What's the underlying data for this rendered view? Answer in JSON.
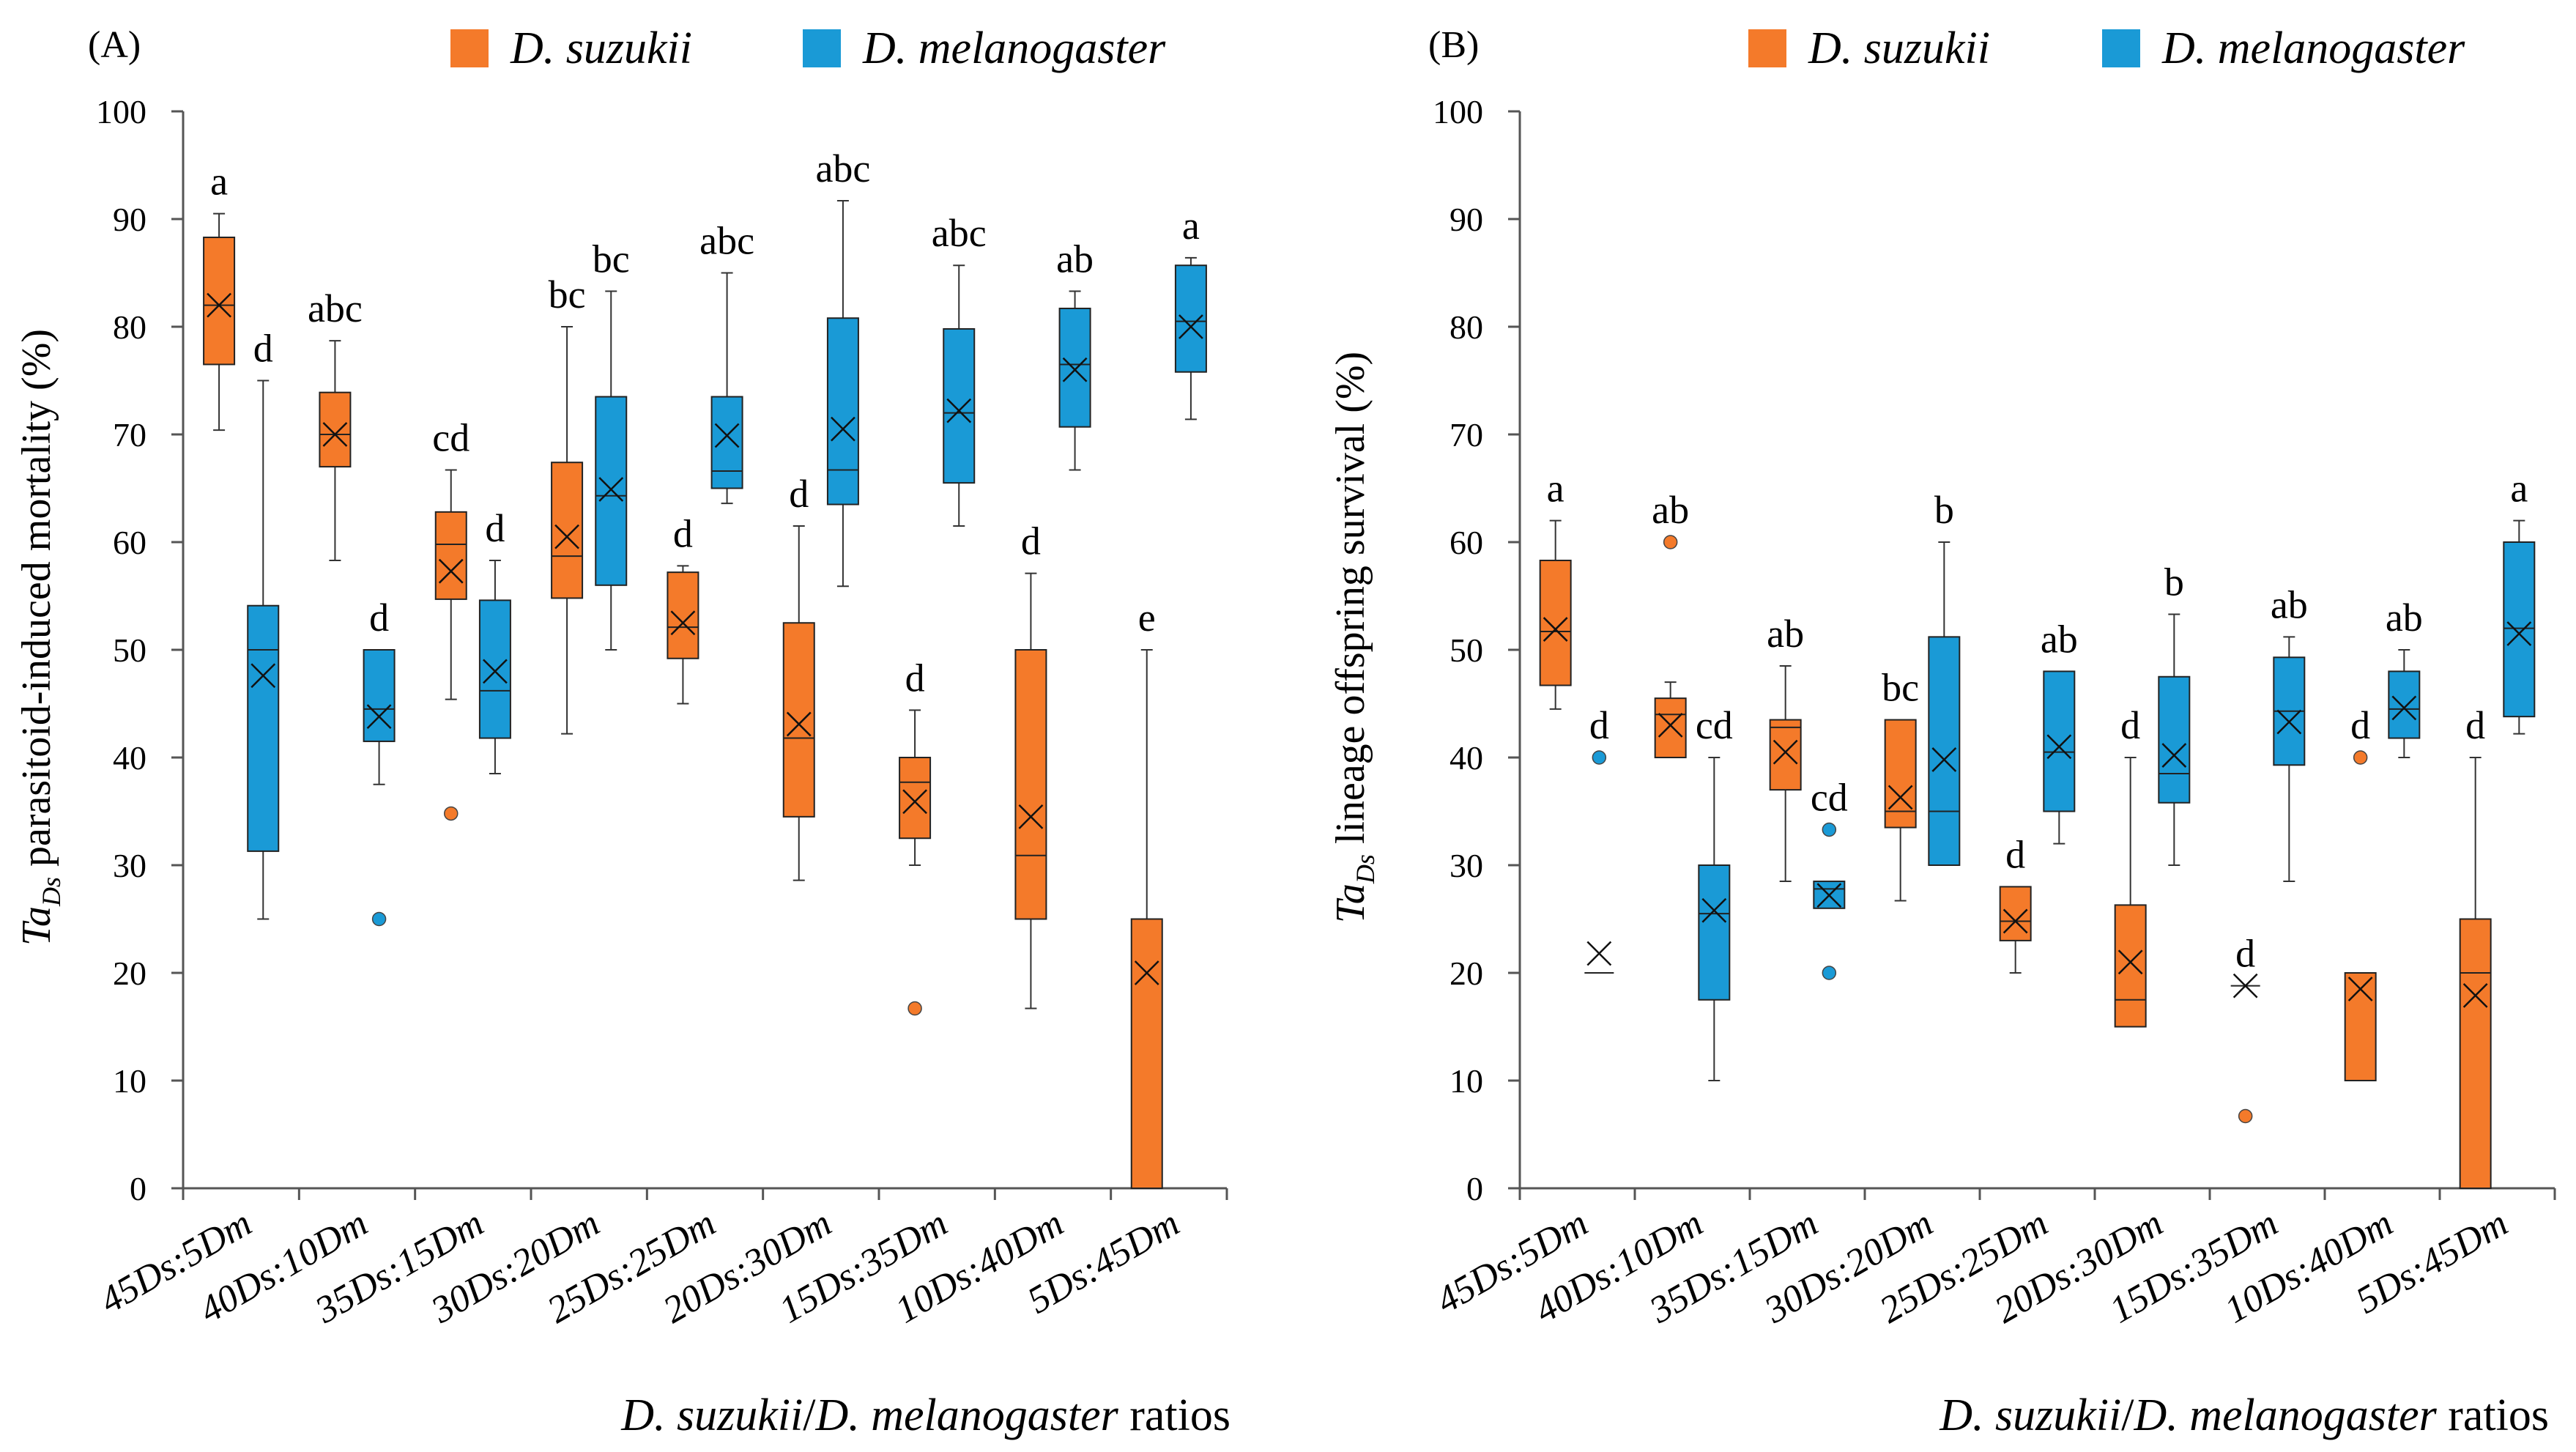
{
  "colors": {
    "ds": "#F47A2A",
    "dm": "#1A9AD6",
    "axis": "#555555",
    "whisker": "#333333"
  },
  "legend": {
    "ds": "D. suzukii",
    "dm": "D. melanogaster"
  },
  "x_axis_title": {
    "prefix": "D. suzukii",
    "sep": "/",
    "mid": "D. melanogaster",
    "suffix": " ratios"
  },
  "chart_data": [
    {
      "type": "box",
      "panel": "(A)",
      "ylabel_prefix": "Ta",
      "ylabel_subscript": "Ds",
      "ylabel_rest": " parasitoid-induced mortality (%)",
      "ylim": [
        0,
        100
      ],
      "yticks": [
        0,
        10,
        20,
        30,
        40,
        50,
        60,
        70,
        80,
        90,
        100
      ],
      "categories": [
        "45Ds:5Dm",
        "40Ds:10Dm",
        "35Ds:15Dm",
        "30Ds:20Dm",
        "25Ds:25Dm",
        "20Ds:30Dm",
        "15Ds:35Dm",
        "10Ds:40Dm",
        "5Ds:45Dm"
      ],
      "series": [
        {
          "name": "D. suzukii",
          "key": "ds",
          "boxes": [
            {
              "min": 70.4,
              "q1": 76.5,
              "median": 82.0,
              "q3": 88.3,
              "max": 90.5,
              "mean": 82.0,
              "letter": "a",
              "outliers": []
            },
            {
              "min": 58.3,
              "q1": 67.0,
              "median": 70.0,
              "q3": 73.9,
              "max": 78.7,
              "mean": 70.0,
              "letter": "abc",
              "outliers": []
            },
            {
              "min": 45.4,
              "q1": 54.7,
              "median": 59.8,
              "q3": 62.8,
              "max": 66.7,
              "mean": 57.3,
              "letter": "cd",
              "outliers": [
                34.8
              ]
            },
            {
              "min": 42.2,
              "q1": 54.8,
              "median": 58.7,
              "q3": 67.4,
              "max": 80.0,
              "mean": 60.5,
              "letter": "bc",
              "outliers": []
            },
            {
              "min": 45.0,
              "q1": 49.2,
              "median": 52.1,
              "q3": 57.2,
              "max": 57.8,
              "mean": 52.5,
              "letter": "d",
              "outliers": []
            },
            {
              "min": 28.6,
              "q1": 34.5,
              "median": 41.8,
              "q3": 52.5,
              "max": 61.5,
              "mean": 43.1,
              "letter": "d",
              "outliers": []
            },
            {
              "min": 30.0,
              "q1": 32.5,
              "median": 37.7,
              "q3": 40.0,
              "max": 44.4,
              "mean": 35.9,
              "letter": "d",
              "outliers": [
                16.7
              ]
            },
            {
              "min": 16.7,
              "q1": 25.0,
              "median": 30.9,
              "q3": 50.0,
              "max": 57.1,
              "mean": 34.5,
              "letter": "d",
              "outliers": []
            },
            {
              "min": 0.0,
              "q1": 0.0,
              "median": 0.0,
              "q3": 25.0,
              "max": 50.0,
              "mean": 20.0,
              "letter": "e",
              "outliers": []
            }
          ]
        },
        {
          "name": "D. melanogaster",
          "key": "dm",
          "boxes": [
            {
              "min": 25.0,
              "q1": 31.3,
              "median": 50.0,
              "q3": 54.1,
              "max": 75.0,
              "mean": 47.6,
              "letter": "d",
              "outliers": []
            },
            {
              "min": 37.5,
              "q1": 41.5,
              "median": 44.5,
              "q3": 50.0,
              "max": 50.0,
              "mean": 43.8,
              "letter": "d",
              "outliers": [
                25.0
              ]
            },
            {
              "min": 38.5,
              "q1": 41.8,
              "median": 46.2,
              "q3": 54.6,
              "max": 58.3,
              "mean": 48.0,
              "letter": "d",
              "outliers": []
            },
            {
              "min": 50.0,
              "q1": 56.0,
              "median": 64.3,
              "q3": 73.5,
              "max": 83.3,
              "mean": 64.9,
              "letter": "bc",
              "outliers": []
            },
            {
              "min": 63.6,
              "q1": 65.0,
              "median": 66.6,
              "q3": 73.5,
              "max": 85.0,
              "mean": 69.9,
              "letter": "abc",
              "outliers": []
            },
            {
              "min": 55.9,
              "q1": 63.5,
              "median": 66.7,
              "q3": 80.8,
              "max": 91.7,
              "mean": 70.5,
              "letter": "abc",
              "outliers": []
            },
            {
              "min": 61.5,
              "q1": 65.5,
              "median": 72.0,
              "q3": 79.8,
              "max": 85.7,
              "mean": 72.2,
              "letter": "abc",
              "outliers": []
            },
            {
              "min": 66.7,
              "q1": 70.7,
              "median": 76.5,
              "q3": 81.7,
              "max": 83.3,
              "mean": 76.0,
              "letter": "ab",
              "outliers": []
            },
            {
              "min": 71.4,
              "q1": 75.8,
              "median": 80.5,
              "q3": 85.7,
              "max": 86.4,
              "mean": 80.0,
              "letter": "a",
              "outliers": []
            }
          ]
        }
      ]
    },
    {
      "type": "box",
      "panel": "(B)",
      "ylabel_prefix": "Ta",
      "ylabel_subscript": "Ds",
      "ylabel_rest": " lineage offspring survival (%)",
      "ylim": [
        0,
        100
      ],
      "yticks": [
        0,
        10,
        20,
        30,
        40,
        50,
        60,
        70,
        80,
        90,
        100
      ],
      "categories": [
        "45Ds:5Dm",
        "40Ds:10Dm",
        "35Ds:15Dm",
        "30Ds:20Dm",
        "25Ds:25Dm",
        "20Ds:30Dm",
        "15Ds:35Dm",
        "10Ds:40Dm",
        "5Ds:45Dm"
      ],
      "series": [
        {
          "name": "D. suzukii",
          "key": "ds",
          "boxes": [
            {
              "min": 44.5,
              "q1": 46.7,
              "median": 51.7,
              "q3": 58.3,
              "max": 62.0,
              "mean": 51.9,
              "letter": "a",
              "outliers": []
            },
            {
              "min": 40.0,
              "q1": 40.0,
              "median": 44.0,
              "q3": 45.5,
              "max": 47.0,
              "mean": 43.0,
              "letter": "ab",
              "outliers": [
                60.0
              ]
            },
            {
              "min": 28.5,
              "q1": 37.0,
              "median": 42.8,
              "q3": 43.5,
              "max": 48.5,
              "mean": 40.5,
              "letter": "ab",
              "outliers": []
            },
            {
              "min": 26.7,
              "q1": 33.5,
              "median": 35.0,
              "q3": 43.5,
              "max": 43.5,
              "mean": 36.3,
              "letter": "bc",
              "outliers": []
            },
            {
              "min": 20.0,
              "q1": 23.0,
              "median": 24.8,
              "q3": 28.0,
              "max": 28.0,
              "mean": 24.8,
              "letter": "d",
              "outliers": []
            },
            {
              "min": 15.0,
              "q1": 15.0,
              "median": 17.5,
              "q3": 26.3,
              "max": 40.0,
              "mean": 21.0,
              "letter": "d",
              "outliers": []
            },
            {
              "min": 18.8,
              "q1": 18.8,
              "median": 18.8,
              "q3": 18.8,
              "max": 18.8,
              "mean": 18.8,
              "letter": "d",
              "outliers": [
                6.7
              ]
            },
            {
              "min": 10.0,
              "q1": 10.0,
              "median": 20.0,
              "q3": 20.0,
              "max": 20.0,
              "mean": 18.5,
              "letter": "d",
              "outliers": [
                40.0
              ]
            },
            {
              "min": 0.0,
              "q1": 0.0,
              "median": 20.0,
              "q3": 25.0,
              "max": 40.0,
              "mean": 17.9,
              "letter": "d",
              "outliers": []
            }
          ]
        },
        {
          "name": "D. melanogaster",
          "key": "dm",
          "boxes": [
            {
              "min": 20.0,
              "q1": 20.0,
              "median": 20.0,
              "q3": 20.0,
              "max": 20.0,
              "mean": 21.8,
              "letter": "d",
              "outliers": [
                40.0
              ]
            },
            {
              "min": 10.0,
              "q1": 17.5,
              "median": 25.5,
              "q3": 30.0,
              "max": 40.0,
              "mean": 25.8,
              "letter": "cd",
              "outliers": []
            },
            {
              "min": 26.0,
              "q1": 26.0,
              "median": 27.8,
              "q3": 28.5,
              "max": 28.5,
              "mean": 27.2,
              "letter": "cd",
              "outliers": [
                33.3,
                20.0
              ]
            },
            {
              "min": 30.0,
              "q1": 30.0,
              "median": 35.0,
              "q3": 51.2,
              "max": 60.0,
              "mean": 39.8,
              "letter": "b",
              "outliers": []
            },
            {
              "min": 32.0,
              "q1": 35.0,
              "median": 40.5,
              "q3": 48.0,
              "max": 48.0,
              "mean": 41.0,
              "letter": "ab",
              "outliers": []
            },
            {
              "min": 30.0,
              "q1": 35.8,
              "median": 38.5,
              "q3": 47.5,
              "max": 53.3,
              "mean": 40.2,
              "letter": "b",
              "outliers": []
            },
            {
              "min": 28.5,
              "q1": 39.3,
              "median": 44.3,
              "q3": 49.3,
              "max": 51.2,
              "mean": 43.3,
              "letter": "ab",
              "outliers": []
            },
            {
              "min": 40.0,
              "q1": 41.8,
              "median": 44.5,
              "q3": 48.0,
              "max": 50.0,
              "mean": 44.6,
              "letter": "ab",
              "outliers": []
            },
            {
              "min": 42.2,
              "q1": 43.8,
              "median": 52.0,
              "q3": 60.0,
              "max": 62.0,
              "mean": 51.5,
              "letter": "a",
              "outliers": []
            }
          ]
        }
      ]
    }
  ]
}
